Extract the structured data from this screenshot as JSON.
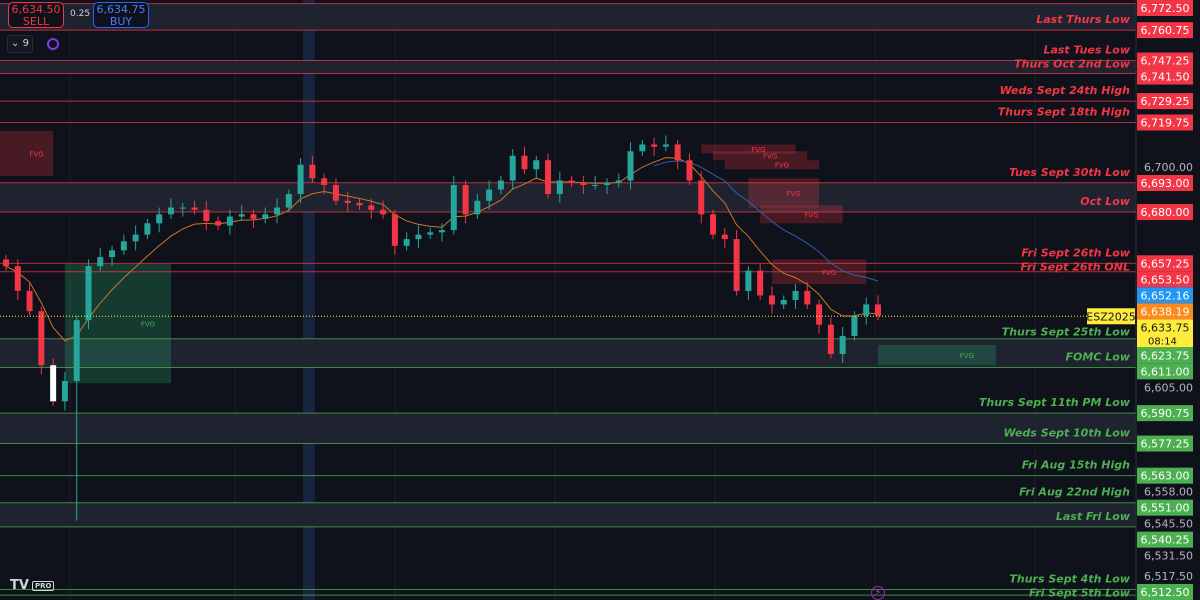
{
  "trade": {
    "sell_price": "6,634.50",
    "sell_label": "SELL",
    "buy_price": "6,634.75",
    "buy_label": "BUY",
    "spread": "0.25"
  },
  "indicators_count": "9",
  "symbol": "ESZ2025",
  "logo": {
    "text": "TV",
    "badge": "PRO"
  },
  "colors": {
    "background": "#0f121a",
    "up": "#26a69a",
    "down": "#f23645",
    "resistance": "#f23645",
    "support": "#4caf50",
    "ema_orange": "#c7772b",
    "ema_blue": "#2f5fa8",
    "last_price": "#ffeb3b"
  },
  "chart_data": {
    "type": "candlestick",
    "ylim": [
      6510,
      6778
    ],
    "grid": true,
    "closes": [
      6656,
      6645,
      6636,
      6612,
      6596,
      6605,
      6632,
      6656,
      6660,
      6663,
      6667,
      6670,
      6675,
      6679,
      6682,
      6682,
      6681,
      6676,
      6674,
      6678,
      6679,
      6677,
      6679,
      6682,
      6688,
      6701,
      6695,
      6692,
      6685,
      6684,
      6683,
      6681,
      6679,
      6665,
      6668,
      6670,
      6671,
      6672,
      6692,
      6679,
      6685,
      6690,
      6694,
      6705,
      6699,
      6703,
      6688,
      6694,
      6693,
      6692,
      6692,
      6693,
      6694,
      6707,
      6710,
      6709,
      6710,
      6703,
      6694,
      6679,
      6670,
      6668,
      6645,
      6654,
      6643,
      6639,
      6641,
      6645,
      6639,
      6630,
      6617,
      6625,
      6634,
      6639,
      6634
    ],
    "spike_low": {
      "index": 6,
      "price": 6543
    },
    "levels": [
      {
        "price": 6772.5,
        "label": "",
        "side": "red"
      },
      {
        "price": 6760.75,
        "label": "Last Thurs Low",
        "side": "red"
      },
      {
        "price": 6747.25,
        "label": "Last Tues Low",
        "side": "red"
      },
      {
        "price": 6741.5,
        "label": "Thurs Oct 2nd Low",
        "side": "red"
      },
      {
        "price": 6729.25,
        "label": "Weds Sept 24th High",
        "side": "red"
      },
      {
        "price": 6719.75,
        "label": "Thurs Sept 18th High",
        "side": "red"
      },
      {
        "price": 6693.0,
        "label": "Tues Sept 30th Low",
        "side": "red"
      },
      {
        "price": 6680.0,
        "label": "Oct Low",
        "side": "red"
      },
      {
        "price": 6657.25,
        "label": "Fri Sept 26th Low",
        "side": "red"
      },
      {
        "price": 6653.5,
        "label": "Fri Sept 26th ONL",
        "side": "red"
      },
      {
        "price": 6623.75,
        "label": "Thurs Sept 25th Low",
        "side": "green"
      },
      {
        "price": 6611.0,
        "label": "FOMC Low",
        "side": "green"
      },
      {
        "price": 6590.75,
        "label": "Thurs Sept 11th PM Low",
        "side": "green"
      },
      {
        "price": 6577.25,
        "label": "Weds Sept 10th Low",
        "side": "green"
      },
      {
        "price": 6563.0,
        "label": "Fri Aug 15th High",
        "side": "green"
      },
      {
        "price": 6551.0,
        "label": "Fri Aug 22nd High",
        "side": "green"
      },
      {
        "price": 6540.25,
        "label": "Last Fri Low",
        "side": "green"
      },
      {
        "price": 6512.5,
        "label": "Thurs Sept 4th Low",
        "side": "green"
      },
      {
        "price": 6510.0,
        "label": "Fri Sept 5th Low",
        "side": "green"
      }
    ],
    "level_tag_texts": [
      "6,772.50",
      "6,760.75",
      "6,747.25",
      "6,741.50",
      "6,729.25",
      "6,719.75",
      "6,693.00",
      "6,680.00",
      "6,657.25",
      "6,653.50",
      "6,623.75",
      "6,611.00",
      "6,590.75",
      "6,577.25",
      "6,563.00",
      "6,551.00",
      "6,540.25",
      "6,512.50",
      ""
    ],
    "axis_ticks": [
      {
        "price": 6700,
        "text": "6,700.00"
      },
      {
        "price": 6605,
        "text": "6,605.00"
      },
      {
        "price": 6558,
        "text": "6,558.00"
      },
      {
        "price": 6545.5,
        "text": "6,545.50"
      },
      {
        "price": 6531.5,
        "text": "6,531.50"
      },
      {
        "price": 6517.5,
        "text": "6,517.50"
      }
    ],
    "price_tags": [
      {
        "price": 6652.16,
        "text": "6,652.16",
        "color": "#2196f3"
      },
      {
        "price": 6638.19,
        "text": "6,638.19",
        "color": "#ff8a1c"
      }
    ],
    "last_price": {
      "price": 6633.75,
      "text": "6,633.75",
      "countdown": "08:14"
    },
    "fvg_label": "FVG",
    "fvg_zones": [
      {
        "type": "bearish",
        "top": 6716,
        "bottom": 6696,
        "from": 0,
        "to": 4
      },
      {
        "type": "bullish",
        "top": 6657,
        "bottom": 6604,
        "from": 5,
        "to": 14
      },
      {
        "type": "bearish",
        "top": 6710,
        "bottom": 6706,
        "from": 59,
        "to": 67
      },
      {
        "type": "bearish",
        "top": 6707,
        "bottom": 6703,
        "from": 60,
        "to": 68
      },
      {
        "type": "bearish",
        "top": 6703,
        "bottom": 6699,
        "from": 61,
        "to": 69
      },
      {
        "type": "bearish",
        "top": 6695,
        "bottom": 6682,
        "from": 63,
        "to": 69
      },
      {
        "type": "bearish",
        "top": 6683,
        "bottom": 6675,
        "from": 64,
        "to": 71
      },
      {
        "type": "bearish",
        "top": 6659,
        "bottom": 6648,
        "from": 65,
        "to": 73
      },
      {
        "type": "bullish",
        "top": 6621,
        "bottom": 6612,
        "from": 74,
        "to": 84
      }
    ]
  }
}
